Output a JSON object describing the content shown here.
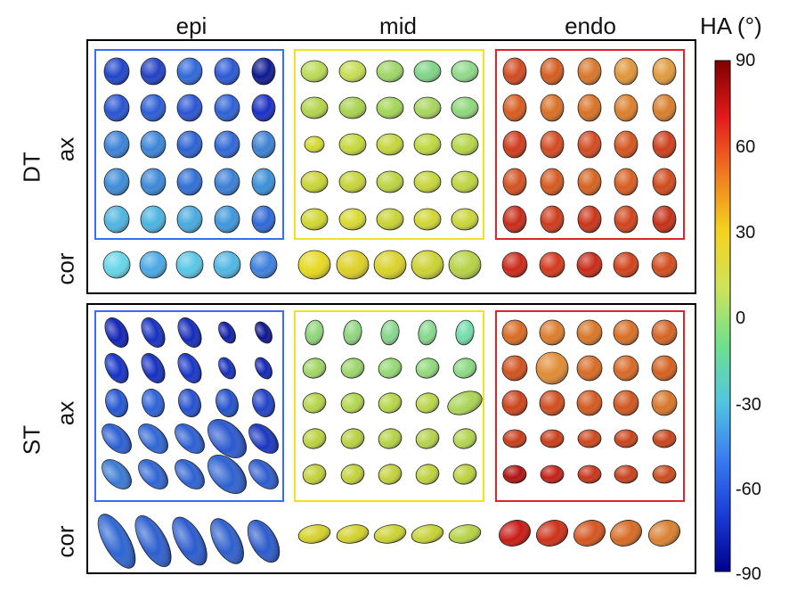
{
  "columns": [
    "epi",
    "mid",
    "endo"
  ],
  "panels": [
    {
      "row_label": "DT",
      "sublabels": [
        "ax",
        "cor"
      ]
    },
    {
      "row_label": "ST",
      "sublabels": [
        "ax",
        "cor"
      ]
    }
  ],
  "group_colors": {
    "epi": "#3a6ef0",
    "mid": "#f2e21a",
    "endo": "#d9262a"
  },
  "colorbar": {
    "title": "HA (°)",
    "ticks": [
      "90",
      "60",
      "30",
      "0",
      "-30",
      "-60",
      "-90"
    ],
    "stops": [
      "#7f0000",
      "#e41a1c",
      "#f07a20",
      "#f5d21e",
      "#cfe35a",
      "#6fe08c",
      "#52c6e0",
      "#3a7df0",
      "#1a3cd6",
      "#00008b"
    ]
  },
  "glyph_colors": {
    "dt_epi": [
      "#1f45c9",
      "#2140c4",
      "#2f68d8",
      "#2b58d4",
      "#0d1a8f",
      "#2854d0",
      "#2a5dd4",
      "#2a55d1",
      "#2e60d6",
      "#1b2fc4",
      "#3b82d8",
      "#3a84d9",
      "#2a62d2",
      "#2f67d7",
      "#3c80d3",
      "#3e8bd6",
      "#3b88d6",
      "#2f6fd5",
      "#3a7fd6",
      "#3a8fd8",
      "#4fb4df",
      "#4ab3e0",
      "#47a9de",
      "#3e96db",
      "#2f68d6"
    ],
    "dt_epi_cor": [
      "#66d6e8",
      "#4aa8e4",
      "#58c6e6",
      "#4fb7e3",
      "#3d7fde"
    ],
    "dt_mid": [
      "#b9db55",
      "#c6dd53",
      "#9ed666",
      "#7fd486",
      "#8fd98a",
      "#b3d44a",
      "#a9d34f",
      "#a2d555",
      "#a7d55b",
      "#8fd77b",
      "#d4d82e",
      "#c5d83a",
      "#c4d53b",
      "#bfd73e",
      "#b6d547",
      "#c9d434",
      "#c6d338",
      "#bcd440",
      "#c7d53a",
      "#bed43e",
      "#cfd72f",
      "#d8d931",
      "#c8d334",
      "#d0d632",
      "#c9d53a"
    ],
    "dt_mid_cor": [
      "#e6d821",
      "#ddd026",
      "#d9d229",
      "#cbd232",
      "#b5d244"
    ],
    "dt_endo": [
      "#d24a20",
      "#d45c1f",
      "#d8762a",
      "#e09538",
      "#e09a3c",
      "#d65c1f",
      "#d86f24",
      "#d77125",
      "#db7f2c",
      "#d77e2b",
      "#cf3a1b",
      "#d24a20",
      "#d2491f",
      "#d4541e",
      "#cd3e1c",
      "#d3521f",
      "#d4581f",
      "#d5621f",
      "#d85d21",
      "#cf4a1c",
      "#c72a18",
      "#cd3a1a",
      "#c93417",
      "#d0431b",
      "#c23016"
    ],
    "dt_endo_cor": [
      "#cc2818",
      "#d3381a",
      "#c82a17",
      "#d04219",
      "#d24b1c"
    ],
    "st_epi": [
      "#1223b5",
      "#1630c0",
      "#142bba",
      "#0f1fa8",
      "#0c158f",
      "#1633c6",
      "#1530c0",
      "#1836c6",
      "#162fbd",
      "#1426b5",
      "#2457d4",
      "#2b62d6",
      "#2550d0",
      "#2352cc",
      "#2042c7",
      "#2b5fd3",
      "#2f66d5",
      "#2c60d2",
      "#2a58cf",
      "#1a36c0",
      "#3a7ad2",
      "#2f66d3",
      "#2d62d1",
      "#2d62d1",
      "#2c5cce"
    ],
    "st_epi_cor": [
      "#2d65d2",
      "#2e5fcf",
      "#2b5bcf",
      "#2d5fcd",
      "#2b5acb"
    ],
    "st_mid": [
      "#8fd67a",
      "#8ed57f",
      "#86d78c",
      "#86d88c",
      "#72dcaa",
      "#a1d665",
      "#9bd56b",
      "#95d873",
      "#90d979",
      "#8bd981",
      "#b5d448",
      "#b2d54c",
      "#b6d549",
      "#bad647",
      "#a9d455",
      "#bcd13e",
      "#b8d041",
      "#b5d246",
      "#b4d24c",
      "#b2d44e",
      "#c2d039",
      "#c2d13b",
      "#c2d03b",
      "#c0d13c",
      "#bdd13e"
    ],
    "st_mid_cor": [
      "#d4d22a",
      "#d2d12c",
      "#ccd232",
      "#c7d236",
      "#b5d244"
    ],
    "st_endo": [
      "#d86a22",
      "#dc7c2a",
      "#d97628",
      "#d86f25",
      "#d46324",
      "#d0521d",
      "#e08b34",
      "#d86a24",
      "#d76926",
      "#d4601f",
      "#cc431c",
      "#cf4d1e",
      "#d1591f",
      "#d05520",
      "#d7752a",
      "#c73d19",
      "#ca3d19",
      "#cc471b",
      "#c9431a",
      "#c8431b",
      "#b01212",
      "#c22017",
      "#c6341a",
      "#c9411b",
      "#ca4b1c"
    ],
    "st_endo_cor": [
      "#c81a14",
      "#cd3018",
      "#d4551f",
      "#d66a24",
      "#d98030"
    ]
  }
}
